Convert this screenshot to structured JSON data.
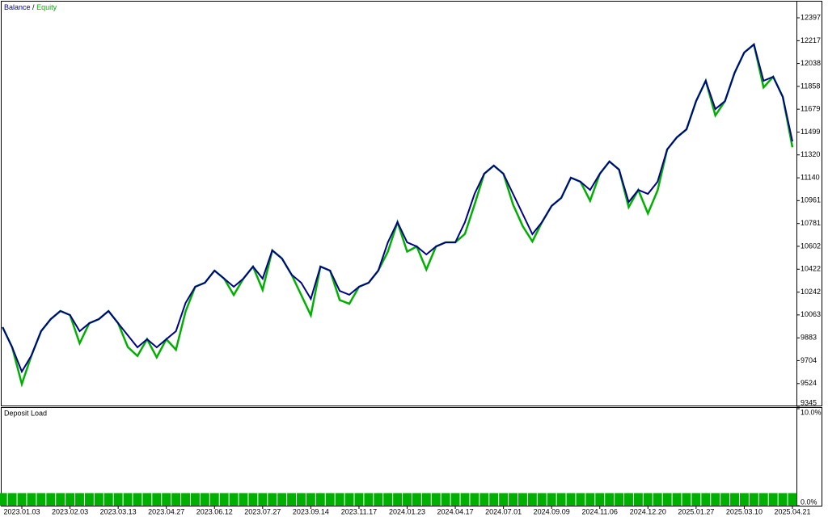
{
  "chart_data": [
    {
      "type": "line",
      "legend_separator": "/",
      "categories": [
        null,
        null,
        "2023.01.03",
        null,
        null,
        null,
        null,
        "2023.02.03",
        null,
        null,
        null,
        null,
        "2023.03.13",
        null,
        null,
        null,
        null,
        "2023.04.27",
        null,
        null,
        null,
        null,
        "2023.06.12",
        null,
        null,
        null,
        null,
        "2023.07.27",
        null,
        null,
        null,
        null,
        "2023.09.14",
        null,
        null,
        null,
        null,
        "2023.11.17",
        null,
        null,
        null,
        null,
        "2024.01.23",
        null,
        null,
        null,
        null,
        "2024.04.17",
        null,
        null,
        null,
        null,
        "2024.07.01",
        null,
        null,
        null,
        null,
        "2024.09.09",
        null,
        null,
        null,
        null,
        "2024.11.06",
        null,
        null,
        null,
        null,
        "2024.12.20",
        null,
        null,
        null,
        null,
        "2025.01.27",
        null,
        null,
        null,
        null,
        "2025.03.10",
        null,
        null,
        null,
        null,
        "2025.04.21"
      ],
      "series": [
        {
          "name": "Balance",
          "color": "#00008b",
          "values": [
            9967,
            9808,
            9618,
            9745,
            9935,
            10030,
            10094,
            10062,
            9935,
            9998,
            10030,
            10094,
            9998,
            9903,
            9808,
            9872,
            9808,
            9872,
            9935,
            10157,
            10284,
            10316,
            10411,
            10348,
            10284,
            10348,
            10443,
            10348,
            10570,
            10506,
            10379,
            10316,
            10189,
            10443,
            10411,
            10252,
            10221,
            10284,
            10316,
            10411,
            10633,
            10792,
            10633,
            10601,
            10538,
            10601,
            10633,
            10633,
            10792,
            11014,
            11172,
            11236,
            11172,
            11014,
            10855,
            10697,
            10792,
            10919,
            10982,
            11141,
            11109,
            11045,
            11172,
            11268,
            11204,
            10950,
            11045,
            11014,
            11109,
            11363,
            11458,
            11521,
            11743,
            11902,
            11680,
            11743,
            11965,
            12124,
            12188,
            11902,
            11934,
            11775,
            11426
          ]
        },
        {
          "name": "Equity",
          "color": "#00b000",
          "values": [
            9967,
            9808,
            9520,
            9745,
            9935,
            10030,
            10094,
            10062,
            9840,
            9998,
            10030,
            10094,
            9998,
            9810,
            9740,
            9872,
            9730,
            9872,
            9790,
            10090,
            10284,
            10316,
            10411,
            10348,
            10220,
            10348,
            10443,
            10260,
            10570,
            10506,
            10379,
            10220,
            10060,
            10443,
            10411,
            10180,
            10150,
            10284,
            10316,
            10411,
            10560,
            10792,
            10560,
            10601,
            10420,
            10601,
            10633,
            10633,
            10700,
            10930,
            11172,
            11236,
            11172,
            10930,
            10760,
            10640,
            10792,
            10919,
            10982,
            11141,
            11109,
            10960,
            11172,
            11268,
            11204,
            10910,
            11045,
            10860,
            11040,
            11363,
            11458,
            11521,
            11743,
            11902,
            11630,
            11743,
            11965,
            12124,
            12188,
            11850,
            11934,
            11775,
            11380
          ]
        }
      ],
      "ylim": [
        9345,
        12524
      ],
      "yticks": [
        9345,
        9524,
        9704,
        9883,
        10063,
        10242,
        10422,
        10602,
        10781,
        10961,
        11140,
        11320,
        11499,
        11679,
        11858,
        12038,
        12217,
        12397
      ]
    },
    {
      "type": "bar",
      "title": "Deposit Load",
      "color": "#00b000",
      "values": [
        1.3,
        1.3,
        1.3,
        1.3,
        1.3,
        1.3,
        1.3,
        1.3,
        1.3,
        1.3,
        1.3,
        1.3,
        1.3,
        1.3,
        1.3,
        1.3,
        1.3,
        1.3,
        1.3,
        1.3,
        1.3,
        1.3,
        1.3,
        1.3,
        1.3,
        1.3,
        1.3,
        1.3,
        1.3,
        1.3,
        1.3,
        1.3,
        1.3,
        1.3,
        1.3,
        1.3,
        1.3,
        1.3,
        1.3,
        1.3,
        1.3,
        1.3,
        1.3,
        1.3,
        1.3,
        1.3,
        1.3,
        1.3,
        1.3,
        1.3,
        1.3,
        1.3,
        1.3,
        1.3,
        1.3,
        1.3,
        1.3,
        1.3,
        1.3,
        1.3,
        1.3,
        1.3,
        1.3,
        1.3,
        1.3,
        1.3,
        1.3,
        1.3,
        1.3,
        1.3,
        1.3,
        1.3,
        1.3,
        1.3,
        1.3,
        1.3,
        1.3,
        1.3,
        1.3,
        1.3,
        1.3,
        1.3,
        1.3
      ],
      "ylim": [
        0,
        10
      ],
      "yticks": [
        {
          "value": 0,
          "label": "0.0%"
        },
        {
          "value": 10,
          "label": "10.0%"
        }
      ]
    }
  ]
}
